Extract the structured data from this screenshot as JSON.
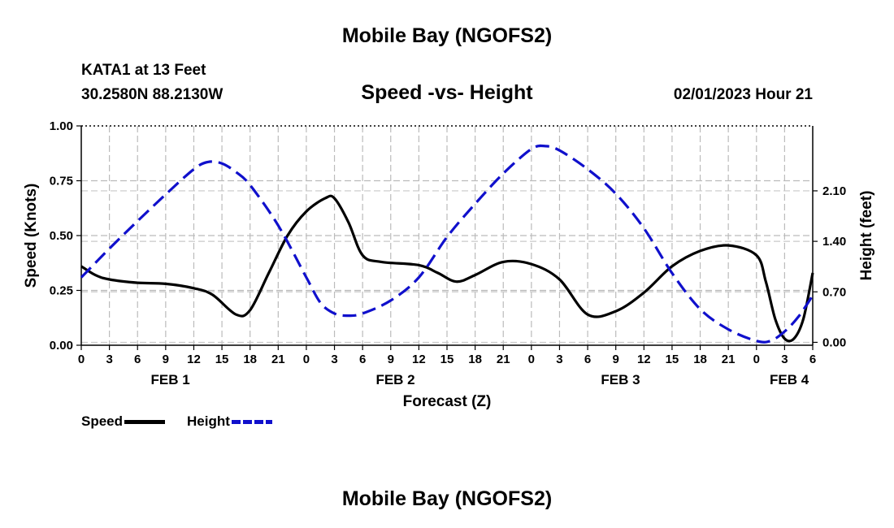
{
  "header": {
    "title": "Mobile Bay (NGOFS2)",
    "station": "KATA1 at 13 Feet",
    "coords": "30.2580N  88.2130W",
    "subtitle": "Speed -vs- Height",
    "datetime": "02/01/2023 Hour 21"
  },
  "footer": {
    "title": "Mobile Bay (NGOFS2)"
  },
  "legend": {
    "items": [
      {
        "label": "Speed",
        "color": "#000000",
        "style": "solid"
      },
      {
        "label": "Height",
        "color": "#1010cc",
        "style": "dashed"
      }
    ]
  },
  "chart_data": {
    "type": "line",
    "xlabel": "Forecast (Z)",
    "ylabel_left": "Speed (Knots)",
    "ylabel_right": "Height (feet)",
    "x_range_hours": [
      0,
      78
    ],
    "x_tick_step_hours": 3,
    "x_tick_labels": [
      "0",
      "3",
      "6",
      "9",
      "12",
      "15",
      "18",
      "21",
      "0",
      "3",
      "6",
      "9",
      "12",
      "15",
      "18",
      "21",
      "0",
      "3",
      "6",
      "9",
      "12",
      "15",
      "18",
      "21",
      "0",
      "3",
      "6"
    ],
    "day_labels": [
      {
        "label": "FEB 1",
        "hour": 9.5
      },
      {
        "label": "FEB 2",
        "hour": 33.5
      },
      {
        "label": "FEB 3",
        "hour": 57.5
      },
      {
        "label": "FEB 4",
        "hour": 75.5
      }
    ],
    "ylim_left": [
      0,
      1.0
    ],
    "yticks_left": [
      "0.00",
      "0.25",
      "0.50",
      "0.75",
      "1.00"
    ],
    "ylim_right": [
      -0.04,
      3.0
    ],
    "yticks_right": [
      "0.00",
      "0.70",
      "1.40",
      "2.10"
    ],
    "grid": true,
    "series": [
      {
        "name": "Speed",
        "axis": "left",
        "x": [
          0,
          1.5,
          3,
          6,
          9,
          12,
          14,
          16.5,
          18,
          20,
          22,
          24,
          26,
          27,
          28.5,
          30,
          32,
          36,
          38,
          40,
          42,
          45,
          48,
          51,
          54,
          57,
          60,
          63,
          66,
          69,
          72,
          73,
          74,
          75,
          76,
          77,
          78
        ],
        "y": [
          0.36,
          0.32,
          0.3,
          0.285,
          0.28,
          0.26,
          0.23,
          0.14,
          0.16,
          0.33,
          0.5,
          0.61,
          0.67,
          0.67,
          0.56,
          0.41,
          0.38,
          0.365,
          0.33,
          0.29,
          0.32,
          0.38,
          0.37,
          0.3,
          0.14,
          0.155,
          0.24,
          0.36,
          0.43,
          0.455,
          0.41,
          0.29,
          0.12,
          0.03,
          0.03,
          0.12,
          0.33
        ]
      },
      {
        "name": "Height",
        "axis": "right",
        "x": [
          0,
          3,
          6,
          9,
          12,
          13.5,
          15,
          16.5,
          18,
          21,
          24,
          25.5,
          27,
          28.5,
          30,
          33,
          36,
          39,
          42,
          45,
          48,
          49.5,
          51,
          54,
          57,
          60,
          63,
          66,
          69,
          72,
          73.5,
          75,
          76.5,
          78
        ],
        "y": [
          0.9,
          1.3,
          1.68,
          2.05,
          2.4,
          2.5,
          2.48,
          2.36,
          2.18,
          1.62,
          0.9,
          0.55,
          0.4,
          0.37,
          0.4,
          0.58,
          0.9,
          1.46,
          1.92,
          2.34,
          2.68,
          2.72,
          2.66,
          2.4,
          2.06,
          1.58,
          0.96,
          0.46,
          0.18,
          0.02,
          0.02,
          0.15,
          0.36,
          0.65
        ]
      }
    ]
  }
}
